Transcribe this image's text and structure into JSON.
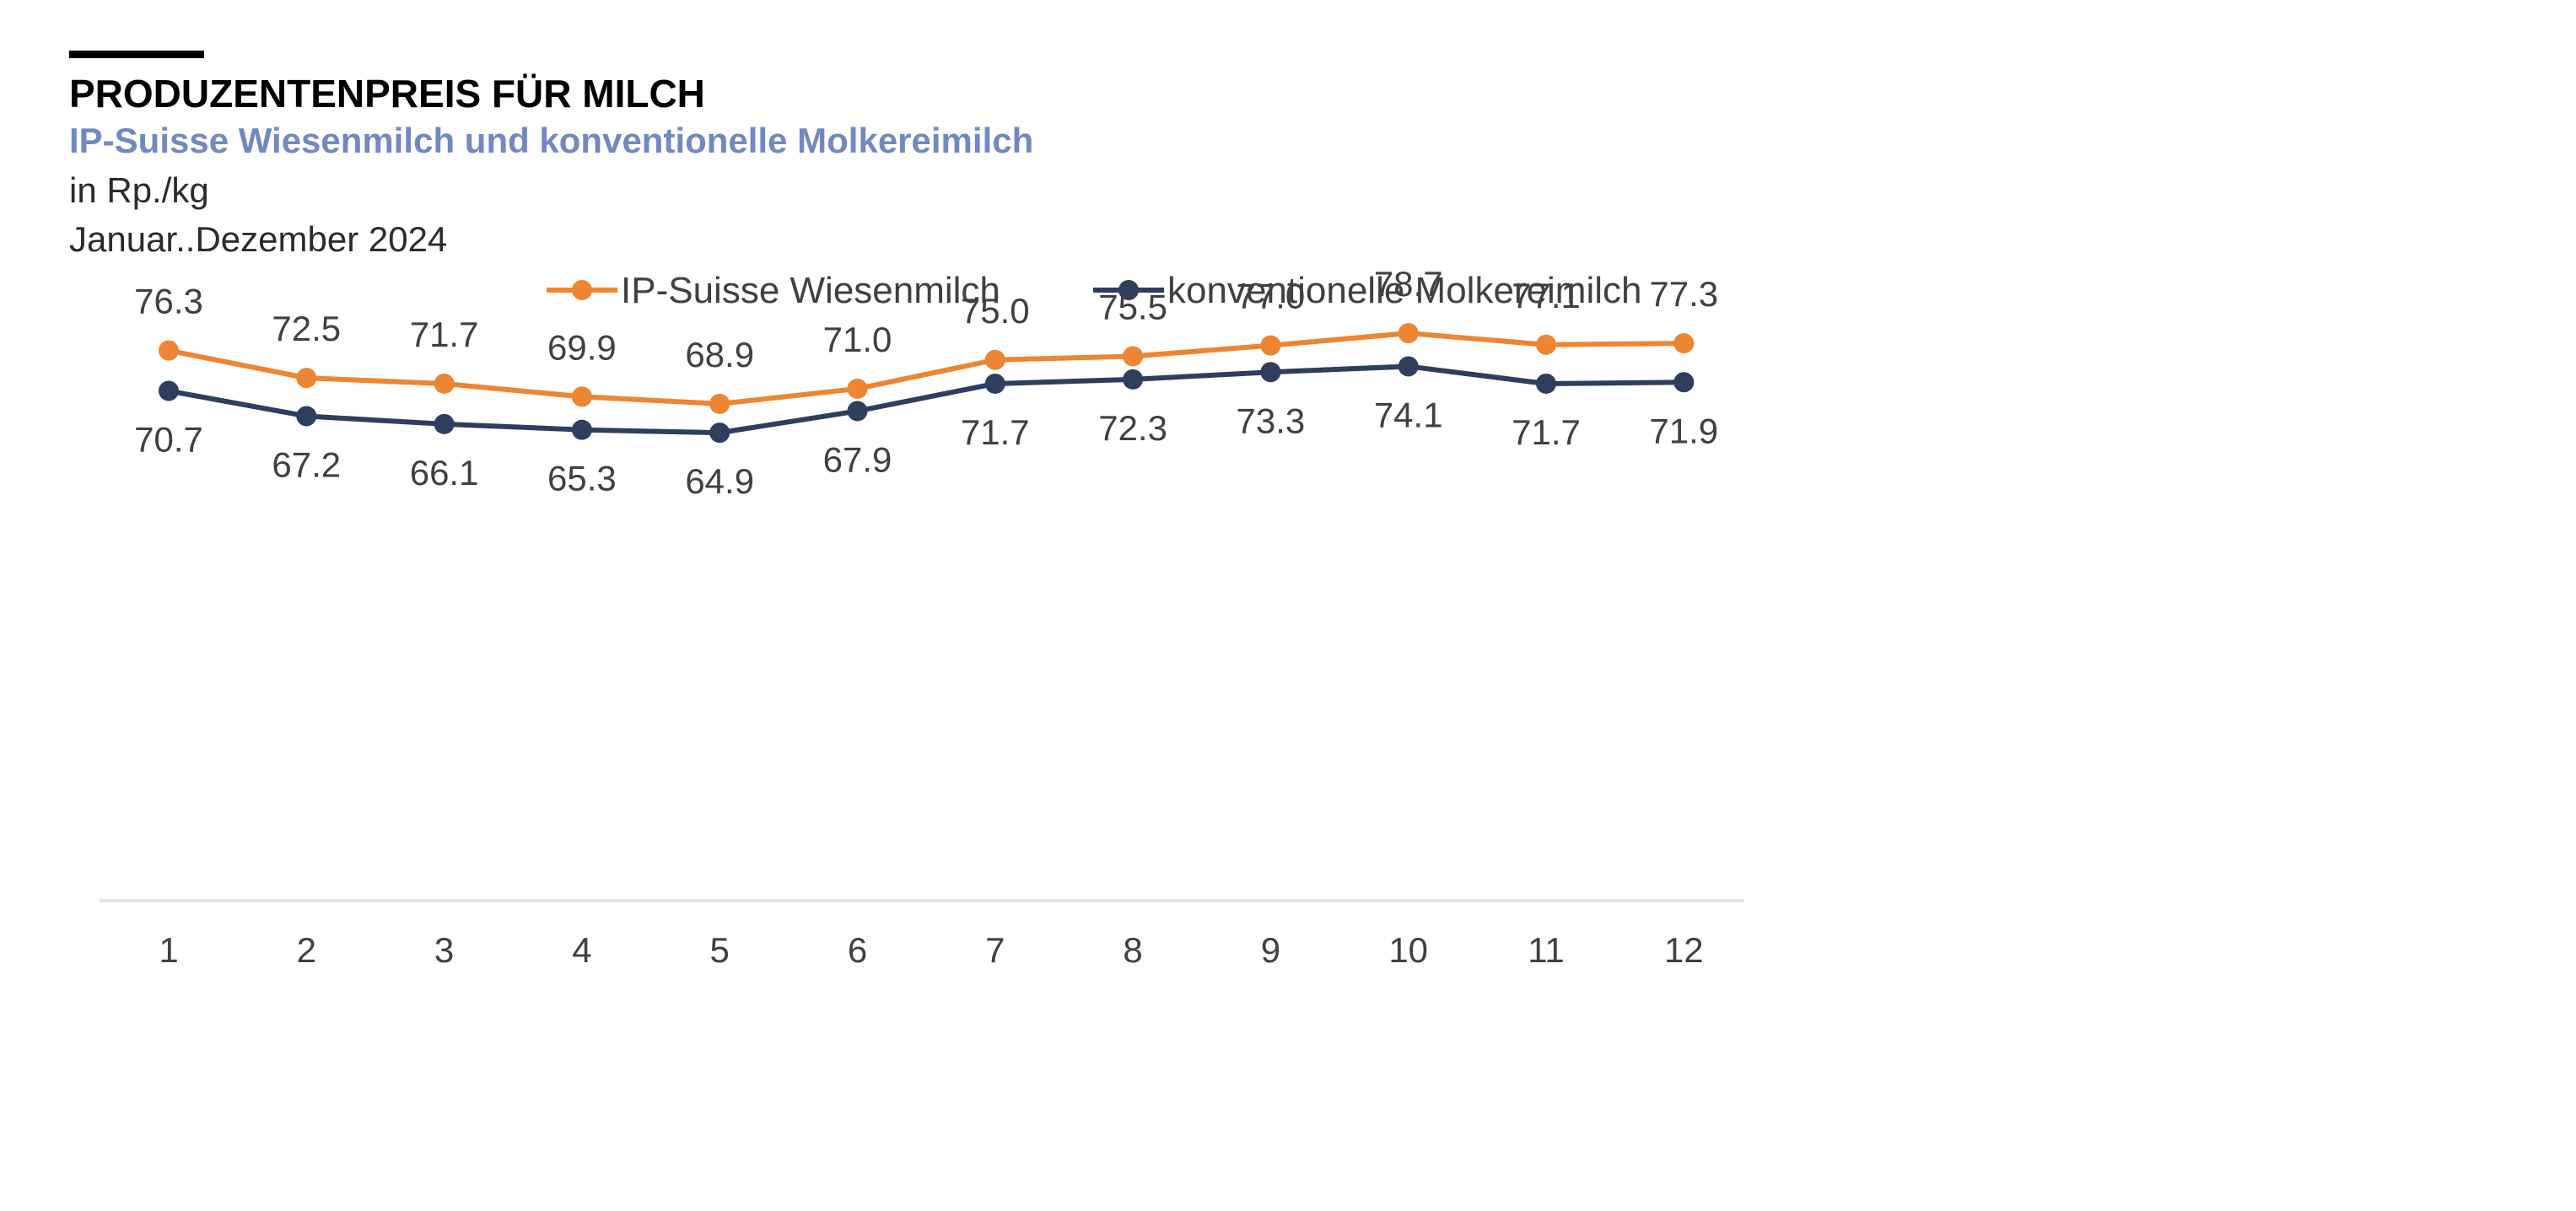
{
  "header": {
    "title": "PRODUZENTENPREIS FÜR MILCH",
    "subtitle": "IP-Suisse Wiesenmilch und konventionelle Molkereimilch",
    "unit": "in Rp./kg",
    "period": "Januar..Dezember 2024"
  },
  "colors": {
    "subtitle": "#7189bf",
    "series_1": "#ed8532",
    "series_2": "#2d3e5e",
    "axis": "#e3e3e3"
  },
  "chart_data": {
    "type": "line",
    "title": "PRODUZENTENPREIS FÜR MILCH",
    "subtitle": "IP-Suisse Wiesenmilch und konventionelle Molkereimilch",
    "xlabel": "",
    "ylabel": "",
    "x": [
      "1",
      "2",
      "3",
      "4",
      "5",
      "6",
      "7",
      "8",
      "9",
      "10",
      "11",
      "12"
    ],
    "series": [
      {
        "name": "IP-Suisse Wiesenmilch",
        "values": [
          76.3,
          72.5,
          71.7,
          69.9,
          68.9,
          71.0,
          75.0,
          75.5,
          77.0,
          78.7,
          77.1,
          77.3
        ],
        "label_position": "above"
      },
      {
        "name": "konventionelle Molkereimilch",
        "values": [
          70.7,
          67.2,
          66.1,
          65.3,
          64.9,
          67.9,
          71.7,
          72.3,
          73.3,
          74.1,
          71.7,
          71.9
        ],
        "label_position": "below"
      }
    ],
    "ylim": [
      0,
      80
    ],
    "grid": false,
    "legend": "top-center",
    "markers": true,
    "data_labels": true
  }
}
